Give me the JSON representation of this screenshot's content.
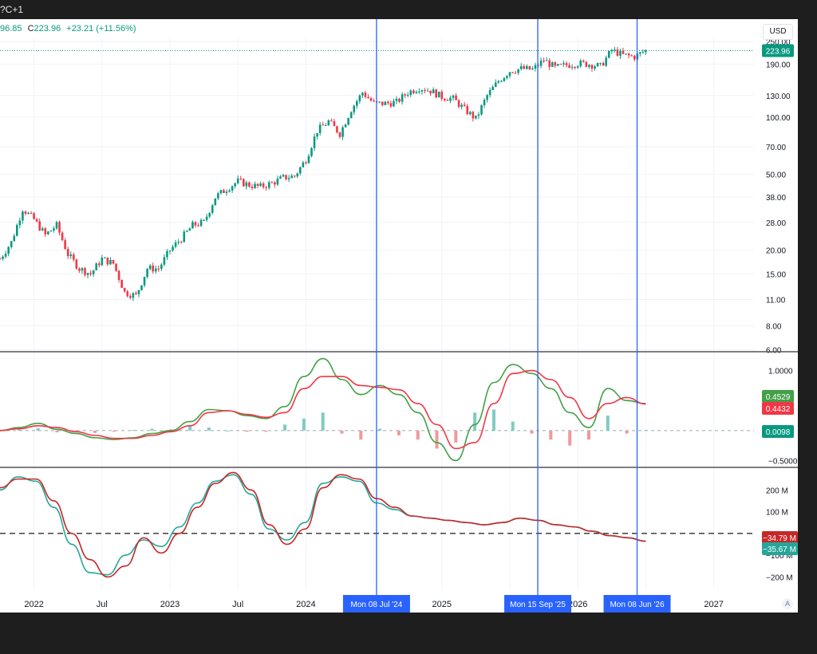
{
  "header": {
    "symbol_fragment": "?C+1"
  },
  "legend": {
    "low": "96.85",
    "close_label": "C",
    "close": "223.96",
    "change": "+23.21 (+11.56%)"
  },
  "currency_button": "USD",
  "auto_scale_button": "A",
  "colors": {
    "up": "#089981",
    "down": "#f23645",
    "marker": "#2962ff",
    "macd_fast": "#43a047",
    "macd_slow": "#f23645",
    "osc_a": "#26a69a",
    "osc_b": "#c62828"
  },
  "chart_data": [
    {
      "type": "candlestick",
      "scale": "log",
      "yticks": [
        "250.00",
        "190.00",
        "130.00",
        "100.00",
        "70.00",
        "50.00",
        "38.00",
        "28.00",
        "20.00",
        "15.00",
        "11.00",
        "8.00",
        "6.00"
      ],
      "last_price_label": "223.96",
      "approx_closes": [
        {
          "x": "2021-10",
          "y": 18
        },
        {
          "x": "2021-11",
          "y": 22
        },
        {
          "x": "2021-12",
          "y": 33
        },
        {
          "x": "2022-01",
          "y": 29
        },
        {
          "x": "2022-02",
          "y": 24
        },
        {
          "x": "2022-03",
          "y": 27
        },
        {
          "x": "2022-04",
          "y": 19
        },
        {
          "x": "2022-05",
          "y": 16
        },
        {
          "x": "2022-06",
          "y": 15
        },
        {
          "x": "2022-07",
          "y": 18
        },
        {
          "x": "2022-08",
          "y": 17
        },
        {
          "x": "2022-09",
          "y": 12
        },
        {
          "x": "2022-10",
          "y": 11.5
        },
        {
          "x": "2022-11",
          "y": 16
        },
        {
          "x": "2022-12",
          "y": 16
        },
        {
          "x": "2023-01",
          "y": 20
        },
        {
          "x": "2023-02",
          "y": 23
        },
        {
          "x": "2023-03",
          "y": 27
        },
        {
          "x": "2023-04",
          "y": 28
        },
        {
          "x": "2023-05",
          "y": 38
        },
        {
          "x": "2023-06",
          "y": 42
        },
        {
          "x": "2023-07",
          "y": 46
        },
        {
          "x": "2023-08",
          "y": 44
        },
        {
          "x": "2023-09",
          "y": 43
        },
        {
          "x": "2023-10",
          "y": 45
        },
        {
          "x": "2023-11",
          "y": 48
        },
        {
          "x": "2023-12",
          "y": 49
        },
        {
          "x": "2024-01",
          "y": 60
        },
        {
          "x": "2024-02",
          "y": 85
        },
        {
          "x": "2024-03",
          "y": 95
        },
        {
          "x": "2024-04",
          "y": 82
        },
        {
          "x": "2024-05",
          "y": 110
        },
        {
          "x": "2024-06",
          "y": 135
        },
        {
          "x": "2024-07",
          "y": 118
        },
        {
          "x": "2024-08",
          "y": 118
        },
        {
          "x": "2024-09",
          "y": 120
        },
        {
          "x": "2024-10",
          "y": 135
        },
        {
          "x": "2024-11",
          "y": 143
        },
        {
          "x": "2024-12",
          "y": 138
        },
        {
          "x": "2025-01",
          "y": 128
        },
        {
          "x": "2025-02",
          "y": 125
        },
        {
          "x": "2025-03",
          "y": 110
        },
        {
          "x": "2025-04",
          "y": 98
        },
        {
          "x": "2025-05",
          "y": 130
        },
        {
          "x": "2025-06",
          "y": 155
        },
        {
          "x": "2025-07",
          "y": 175
        },
        {
          "x": "2025-08",
          "y": 180
        },
        {
          "x": "2025-09",
          "y": 178
        },
        {
          "x": "2025-10",
          "y": 200
        },
        {
          "x": "2025-11",
          "y": 182
        },
        {
          "x": "2025-12",
          "y": 188
        },
        {
          "x": "2026-01",
          "y": 192
        },
        {
          "x": "2026-02",
          "y": 190
        },
        {
          "x": "2026-03",
          "y": 185
        },
        {
          "x": "2026-04",
          "y": 225
        },
        {
          "x": "2026-05",
          "y": 212
        },
        {
          "x": "2026-06",
          "y": 208
        },
        {
          "x": "2026-07",
          "y": 224
        }
      ]
    },
    {
      "type": "line",
      "title": "",
      "yticks": [
        "1.0000",
        "0.5000",
        "0",
        "−0.5000"
      ],
      "ylim": [
        -0.6,
        1.3
      ],
      "value_labels": [
        "0.4529",
        "0.4432",
        "0.0098"
      ],
      "series": [
        {
          "values": [
            0,
            0.05,
            0.12,
            0.02,
            -0.05,
            -0.12,
            -0.15,
            -0.12,
            -0.05,
            0,
            0.15,
            0.35,
            0.33,
            0.25,
            0.2,
            0.4,
            0.9,
            1.2,
            0.85,
            0.6,
            0.75,
            0.6,
            0.3,
            -0.2,
            -0.5,
            0.1,
            0.8,
            1.1,
            0.95,
            0.7,
            0.3,
            0.05,
            0.7,
            0.5,
            0.45
          ]
        },
        {
          "values": [
            0,
            0.03,
            0.08,
            0.05,
            -0.02,
            -0.08,
            -0.13,
            -0.13,
            -0.08,
            -0.02,
            0.08,
            0.3,
            0.33,
            0.27,
            0.22,
            0.3,
            0.7,
            0.9,
            0.9,
            0.75,
            0.72,
            0.68,
            0.45,
            0.1,
            -0.3,
            -0.2,
            0.45,
            0.95,
            1.0,
            0.85,
            0.55,
            0.2,
            0.45,
            0.55,
            0.44
          ]
        },
        {
          "type": "histogram",
          "values": [
            0,
            0.02,
            0.04,
            -0.03,
            -0.03,
            -0.04,
            -0.02,
            0.01,
            0.03,
            0.02,
            0.07,
            0.05,
            0,
            -0.02,
            -0.02,
            0.1,
            0.2,
            0.3,
            -0.05,
            -0.15,
            0.03,
            -0.08,
            -0.15,
            -0.3,
            -0.2,
            0.3,
            0.35,
            0.15,
            -0.05,
            -0.15,
            -0.25,
            -0.15,
            0.25,
            -0.05,
            0.01
          ]
        }
      ]
    },
    {
      "type": "line",
      "yticks": [
        "200 M",
        "100 M",
        "0",
        "−100 M",
        "−200 M"
      ],
      "ylim": [
        -250,
        300
      ],
      "reference_line": 0,
      "value_labels": [
        "−34.79 M",
        "−35.67 M"
      ],
      "series": [
        {
          "values": [
            200,
            260,
            240,
            120,
            -50,
            -180,
            -190,
            -100,
            -30,
            -60,
            30,
            140,
            240,
            270,
            180,
            20,
            -30,
            50,
            230,
            260,
            240,
            140,
            110,
            80,
            70,
            60,
            50,
            40,
            50,
            70,
            60,
            40,
            30,
            10,
            -10,
            -20,
            -35
          ]
        },
        {
          "values": [
            210,
            250,
            250,
            150,
            0,
            -120,
            -200,
            -150,
            -20,
            -90,
            0,
            120,
            230,
            280,
            200,
            40,
            -50,
            20,
            210,
            270,
            250,
            160,
            120,
            80,
            70,
            60,
            50,
            40,
            50,
            70,
            60,
            40,
            30,
            10,
            -10,
            -20,
            -36
          ]
        }
      ]
    }
  ],
  "x_axis": {
    "labels": [
      "2022",
      "Jul",
      "2023",
      "Jul",
      "2024",
      "2025",
      "2026",
      "2027"
    ]
  },
  "markers": [
    {
      "date": "2024-07-08",
      "label": "Mon 08 Jul '24"
    },
    {
      "date": "2025-09-15",
      "label": "Mon 15 Sep '25"
    },
    {
      "date": "2026-06-08",
      "label": "Mon 08 Jun '26"
    }
  ]
}
